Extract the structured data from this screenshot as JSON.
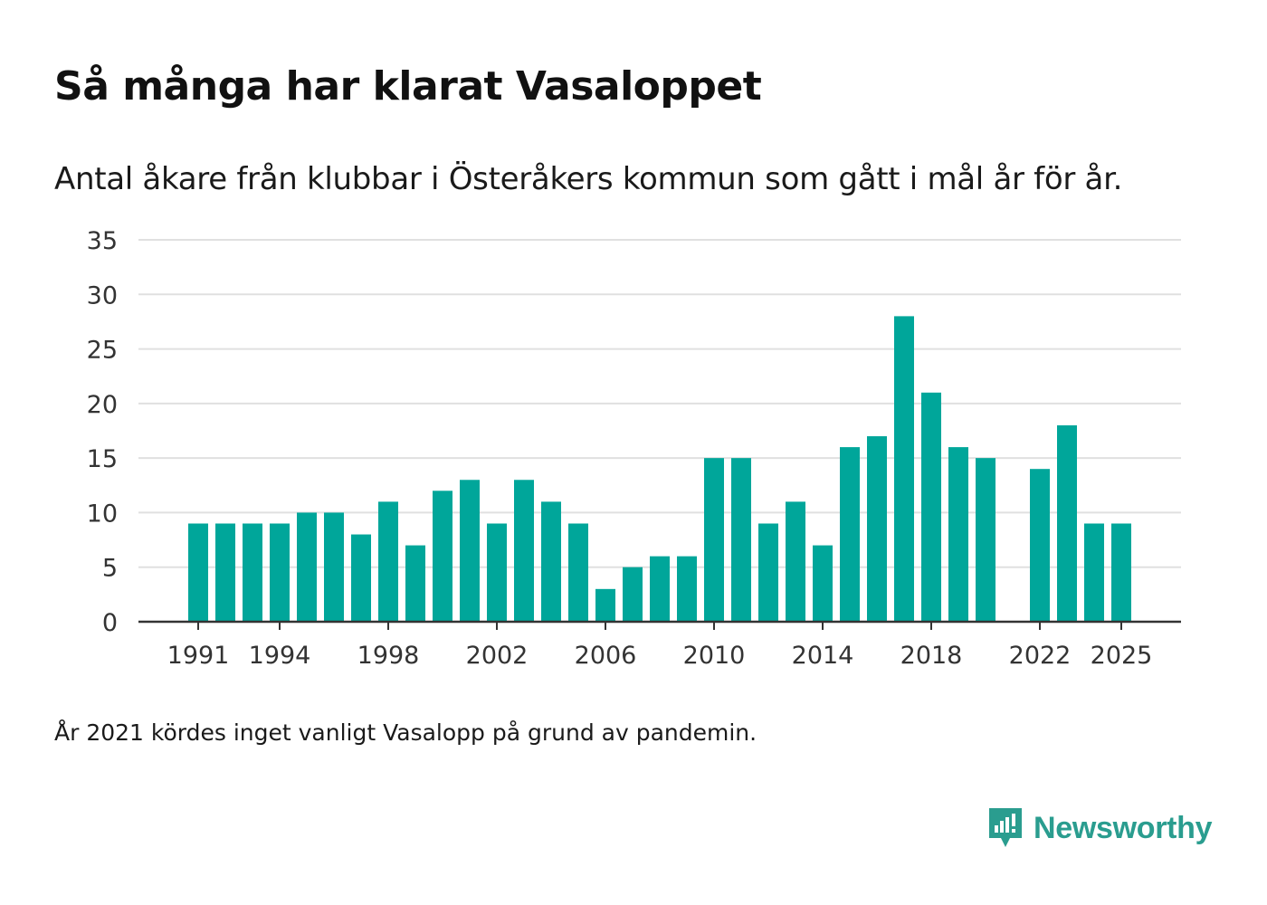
{
  "title": "Så många har klarat Vasaloppet",
  "subtitle": "Antal åkare från klubbar i Österåkers kommun som gått i mål år för år.",
  "note": "År 2021 kördes inget vanligt Vasalopp på grund av pandemin.",
  "brand": {
    "name": "Newsworthy",
    "icon": "newsworthy-logo-icon",
    "color": "#2a9d8f"
  },
  "colors": {
    "bar": "#00a69a",
    "grid": "#e0e0e0",
    "axis": "#333333"
  },
  "chart_data": {
    "type": "bar",
    "title": "Så många har klarat Vasaloppet",
    "xlabel": "",
    "ylabel": "",
    "ylim": [
      0,
      35
    ],
    "yticks": [
      0,
      5,
      10,
      15,
      20,
      25,
      30,
      35
    ],
    "xtick_labels": [
      "1991",
      "1994",
      "1998",
      "2002",
      "2006",
      "2010",
      "2014",
      "2018",
      "2022",
      "2025"
    ],
    "grid": true,
    "categories": [
      "1991",
      "1992",
      "1993",
      "1994",
      "1995",
      "1996",
      "1997",
      "1998",
      "1999",
      "2000",
      "2001",
      "2002",
      "2003",
      "2004",
      "2005",
      "2006",
      "2007",
      "2008",
      "2009",
      "2010",
      "2011",
      "2012",
      "2013",
      "2014",
      "2015",
      "2016",
      "2017",
      "2018",
      "2019",
      "2020",
      "2021",
      "2022",
      "2023",
      "2024",
      "2025"
    ],
    "values": [
      9,
      9,
      9,
      9,
      10,
      10,
      8,
      11,
      7,
      12,
      13,
      9,
      13,
      11,
      9,
      3,
      5,
      6,
      6,
      15,
      15,
      9,
      11,
      7,
      16,
      17,
      28,
      21,
      16,
      15,
      null,
      14,
      18,
      9,
      9
    ]
  }
}
